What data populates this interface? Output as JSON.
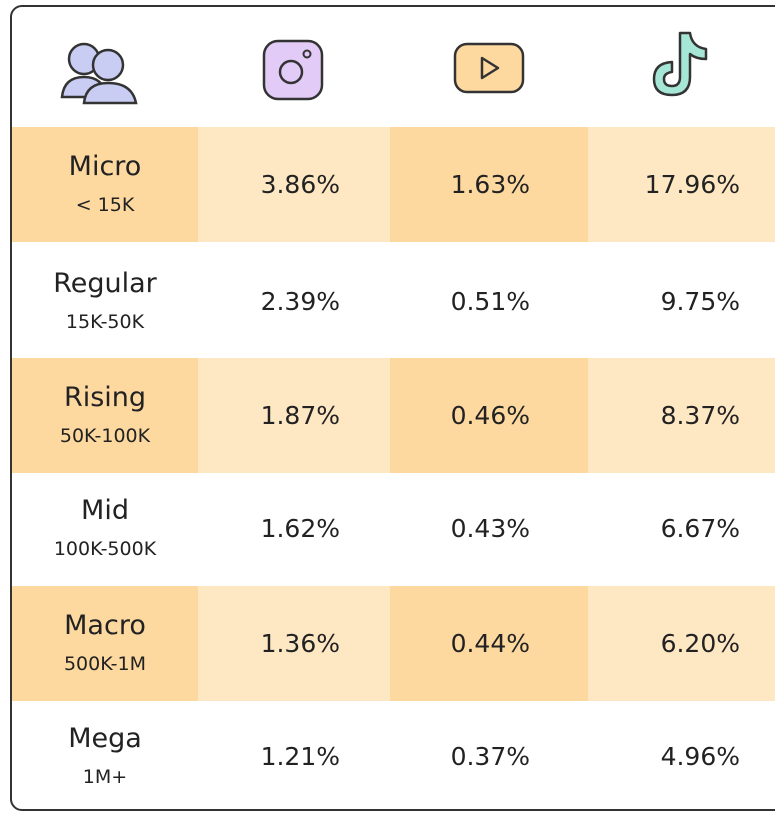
{
  "table": {
    "rows": [
      {
        "name": "Micro",
        "range": "< 15K",
        "values": [
          "3.86%",
          "1.63%",
          "17.96%"
        ]
      },
      {
        "name": "Regular",
        "range": "15K-50K",
        "values": [
          "2.39%",
          "0.51%",
          "9.75%"
        ]
      },
      {
        "name": "Rising",
        "range": "50K-100K",
        "values": [
          "1.87%",
          "0.46%",
          "8.37%"
        ]
      },
      {
        "name": "Mid",
        "range": "100K-500K",
        "values": [
          "1.62%",
          "0.43%",
          "6.67%"
        ]
      },
      {
        "name": "Macro",
        "range": "500K-1M",
        "values": [
          "1.36%",
          "0.44%",
          "6.20%"
        ]
      },
      {
        "name": "Mega",
        "range": "1M+",
        "values": [
          "1.21%",
          "0.37%",
          "4.96%"
        ]
      }
    ]
  }
}
